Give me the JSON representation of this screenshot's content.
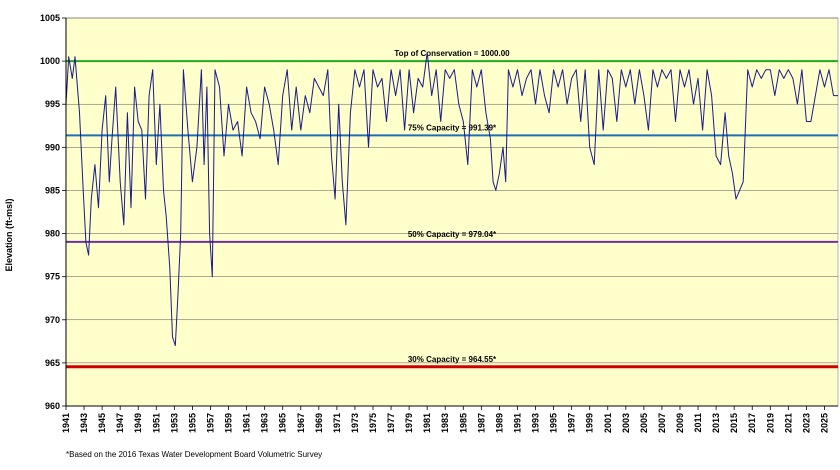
{
  "chart_data": {
    "type": "line",
    "ylabel": "Elevation (ft-msl)",
    "ylim": [
      960,
      1005
    ],
    "yticks": [
      960,
      965,
      970,
      975,
      980,
      985,
      990,
      995,
      1000,
      1005
    ],
    "xlim": [
      1941,
      2026.5
    ],
    "xtick_labels": [
      "1941",
      "1943",
      "1945",
      "1947",
      "1949",
      "1951",
      "1953",
      "1955",
      "1957",
      "1959",
      "1961",
      "1963",
      "1965",
      "1967",
      "1969",
      "1971",
      "1973",
      "1975",
      "1977",
      "1979",
      "1981",
      "1983",
      "1985",
      "1987",
      "1989",
      "1991",
      "1993",
      "1995",
      "1997",
      "1999",
      "2001",
      "2003",
      "2005",
      "2007",
      "2009",
      "2011",
      "2013",
      "2015",
      "2017",
      "2019",
      "2021",
      "2023",
      "2025"
    ],
    "grid": true,
    "background": "#ffffcc",
    "reference_lines": [
      {
        "label": "Top of Conservation = 1000.00",
        "value": 1000.0,
        "color": "#22aa22"
      },
      {
        "label": "75% Capacity = 991.39*",
        "value": 991.39,
        "color": "#1f6fb5"
      },
      {
        "label": "50% Capacity = 979.04*",
        "value": 979.04,
        "color": "#7030a0"
      },
      {
        "label": "30% Capacity = 964.55*",
        "value": 964.55,
        "color": "#cc0000"
      }
    ],
    "series": [
      {
        "color": "#1a1a8a",
        "x": [
          1941.0,
          1941.3,
          1941.7,
          1942.0,
          1942.5,
          1942.9,
          1943.2,
          1943.5,
          1943.8,
          1944.2,
          1944.6,
          1945.0,
          1945.4,
          1945.8,
          1946.1,
          1946.5,
          1947.0,
          1947.4,
          1947.8,
          1948.2,
          1948.6,
          1949.0,
          1949.4,
          1949.8,
          1950.2,
          1950.6,
          1951.0,
          1951.4,
          1951.8,
          1952.1,
          1952.5,
          1952.8,
          1953.1,
          1953.4,
          1953.7,
          1954.0,
          1954.5,
          1955.0,
          1955.5,
          1956.0,
          1956.3,
          1956.6,
          1956.9,
          1957.2,
          1957.5,
          1958.0,
          1958.5,
          1959.0,
          1959.5,
          1960.0,
          1960.5,
          1961.0,
          1961.5,
          1962.0,
          1962.5,
          1963.0,
          1963.5,
          1964.0,
          1964.5,
          1965.0,
          1965.5,
          1966.0,
          1966.5,
          1967.0,
          1967.5,
          1968.0,
          1968.5,
          1969.0,
          1969.5,
          1970.0,
          1970.4,
          1970.8,
          1971.2,
          1971.6,
          1972.0,
          1972.5,
          1973.0,
          1973.5,
          1974.0,
          1974.5,
          1975.0,
          1975.5,
          1976.0,
          1976.5,
          1977.0,
          1977.5,
          1978.0,
          1978.5,
          1979.0,
          1979.5,
          1980.0,
          1980.5,
          1981.0,
          1981.5,
          1982.0,
          1982.5,
          1983.0,
          1983.5,
          1984.0,
          1984.5,
          1985.0,
          1985.5,
          1986.0,
          1986.5,
          1987.0,
          1987.5,
          1988.0,
          1988.3,
          1988.6,
          1989.0,
          1989.4,
          1989.7,
          1990.0,
          1990.5,
          1991.0,
          1991.5,
          1992.0,
          1992.5,
          1993.0,
          1993.5,
          1994.0,
          1994.5,
          1995.0,
          1995.5,
          1996.0,
          1996.5,
          1997.0,
          1997.5,
          1998.0,
          1998.5,
          1999.0,
          1999.5,
          2000.0,
          2000.5,
          2001.0,
          2001.5,
          2002.0,
          2002.5,
          2003.0,
          2003.5,
          2004.0,
          2004.5,
          2005.0,
          2005.5,
          2006.0,
          2006.5,
          2007.0,
          2007.5,
          2008.0,
          2008.5,
          2009.0,
          2009.5,
          2010.0,
          2010.5,
          2011.0,
          2011.5,
          2012.0,
          2012.5,
          2013.0,
          2013.5,
          2014.0,
          2014.4,
          2014.8,
          2015.2,
          2015.6,
          2016.0,
          2016.5,
          2017.0,
          2017.5,
          2018.0,
          2018.5,
          2019.0,
          2019.5,
          2020.0,
          2020.5,
          2021.0,
          2021.5,
          2022.0,
          2022.5,
          2023.0,
          2023.5,
          2024.0,
          2024.5,
          2025.0,
          2025.5,
          2026.0,
          2026.5
        ],
        "y": [
          995,
          1000.5,
          998,
          1000.5,
          994,
          985,
          979,
          977.5,
          984,
          988,
          983,
          992,
          996,
          986,
          991,
          997,
          986,
          981,
          994,
          983,
          997,
          993,
          992,
          984,
          996,
          999,
          988,
          995,
          985,
          982,
          976,
          968,
          967,
          973,
          980,
          999,
          992,
          986,
          990,
          999,
          988,
          997,
          980,
          975,
          999,
          997,
          989,
          995,
          992,
          993,
          989,
          997,
          994,
          993,
          991,
          997,
          995,
          992,
          988,
          996,
          999,
          992,
          997,
          992,
          996,
          994,
          998,
          997,
          996,
          999,
          989,
          984,
          995,
          986,
          981,
          994,
          999,
          997,
          999,
          990,
          999,
          997,
          998,
          993,
          999,
          996,
          999,
          992,
          999,
          994,
          998,
          997,
          1001,
          996,
          999,
          993,
          999,
          998,
          999,
          995,
          993,
          988,
          999,
          997,
          999,
          994,
          991,
          986,
          985,
          987,
          990,
          986,
          999,
          997,
          999,
          996,
          998,
          999,
          995,
          999,
          996,
          994,
          999,
          997,
          999,
          995,
          998,
          999,
          993,
          999,
          990,
          988,
          999,
          992,
          999,
          998,
          993,
          999,
          997,
          999,
          995,
          999,
          996,
          992,
          999,
          997,
          999,
          998,
          999,
          993,
          999,
          997,
          999,
          995,
          998,
          992,
          999,
          996,
          989,
          988,
          994,
          989,
          987,
          984,
          985,
          986,
          999,
          997,
          999,
          998,
          999,
          999,
          996,
          999,
          998,
          999,
          998,
          995,
          999,
          993,
          993,
          996,
          999,
          997,
          999,
          996,
          996
        ]
      }
    ],
    "footnote": "*Based on the 2016 Texas Water Development Board Volumetric Survey"
  }
}
